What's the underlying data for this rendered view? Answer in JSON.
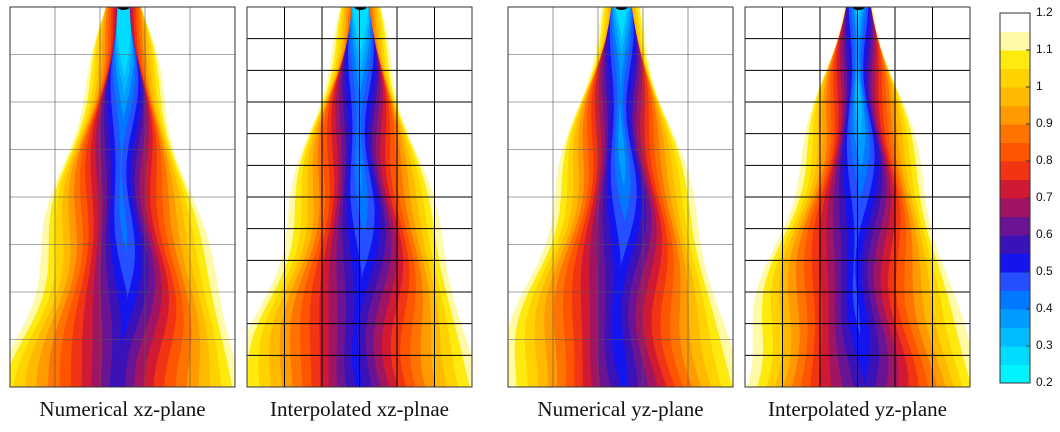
{
  "chart_data": {
    "type": "contour",
    "panels": [
      {
        "caption": "Numerical xz-plane"
      },
      {
        "caption": "Interpolated xz-plnae"
      },
      {
        "caption": "Numerical yz-plane"
      },
      {
        "caption": "Interpolated yz-plane"
      }
    ],
    "colorbar": {
      "ylim": [
        0.2,
        1.2
      ],
      "yticks": [
        0.2,
        0.3,
        0.4,
        0.5,
        0.6,
        0.7,
        0.8,
        0.9,
        1,
        1.1,
        1.2
      ],
      "colors": [
        "#00f4ff",
        "#00dcff",
        "#00bcff",
        "#009cff",
        "#0078ff",
        "#2450ff",
        "#1414ee",
        "#3a12b8",
        "#6a1494",
        "#a01464",
        "#d01a34",
        "#f03414",
        "#ff5400",
        "#ff7400",
        "#ff9a00",
        "#ffba00",
        "#ffd200",
        "#ffea10",
        "#fffaa8",
        "#ffffff"
      ]
    }
  }
}
